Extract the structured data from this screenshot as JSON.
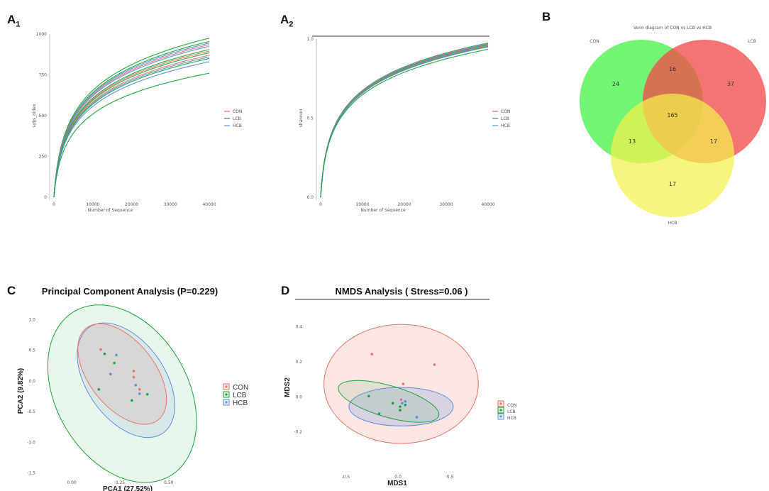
{
  "panels": {
    "a1": {
      "letter": "A",
      "sub": "1"
    },
    "a2": {
      "letter": "A",
      "sub": "2"
    },
    "b": {
      "letter": "B"
    },
    "c": {
      "letter": "C"
    },
    "d": {
      "letter": "D"
    }
  },
  "chart_data": [
    {
      "id": "A1",
      "type": "line",
      "title": "",
      "xlabel": "Number of Sequence",
      "ylabel": "sobs_index",
      "xlim": [
        0,
        40000
      ],
      "ylim": [
        0,
        1000
      ],
      "xticks": [
        "0",
        "10000",
        "20000",
        "30000",
        "40000"
      ],
      "yticks": [
        "0",
        "250",
        "500",
        "750",
        "1000"
      ],
      "legend": [
        "CON",
        "LCB",
        "HCB"
      ],
      "series": [
        {
          "group": "LCB",
          "final": 975
        },
        {
          "group": "LCB",
          "final": 955
        },
        {
          "group": "HCB",
          "final": 945
        },
        {
          "group": "CON",
          "final": 935
        },
        {
          "group": "HCB",
          "final": 925
        },
        {
          "group": "LCB",
          "final": 905
        },
        {
          "group": "CON",
          "final": 895
        },
        {
          "group": "LCB",
          "final": 885
        },
        {
          "group": "CON",
          "final": 870
        },
        {
          "group": "HCB",
          "final": 860
        },
        {
          "group": "LCB",
          "final": 850
        },
        {
          "group": "HCB",
          "final": 830
        },
        {
          "group": "LCB",
          "final": 760
        }
      ]
    },
    {
      "id": "A2",
      "type": "line",
      "title": "",
      "xlabel": "Number of Sequence",
      "ylabel": "shannon",
      "xlim": [
        0,
        40000
      ],
      "ylim": [
        0,
        1
      ],
      "xticks": [
        "0",
        "10000",
        "20000",
        "30000",
        "40000"
      ],
      "yticks": [
        "0.0",
        "0.5",
        "1.0"
      ],
      "legend": [
        "CON",
        "LCB",
        "HCB"
      ],
      "series": [
        {
          "group": "LCB",
          "final": 0.975
        },
        {
          "group": "HCB",
          "final": 0.972
        },
        {
          "group": "CON",
          "final": 0.968
        },
        {
          "group": "LCB",
          "final": 0.964
        },
        {
          "group": "HCB",
          "final": 0.96
        },
        {
          "group": "CON",
          "final": 0.957
        },
        {
          "group": "LCB",
          "final": 0.953
        },
        {
          "group": "HCB",
          "final": 0.95
        },
        {
          "group": "LCB",
          "final": 0.935
        }
      ]
    },
    {
      "id": "B",
      "type": "venn",
      "title": "Venn diagram of CON vs LCB vs HCB",
      "sets": [
        "CON",
        "LCB",
        "HCB"
      ],
      "regions": {
        "CON": "24",
        "LCB": "37",
        "HCB": "17",
        "CON_LCB": "16",
        "CON_HCB": "13",
        "LCB_HCB": "17",
        "ALL": "165"
      }
    },
    {
      "id": "C",
      "type": "scatter",
      "title": "Principal Component Analysis (P=0.229)",
      "xlabel": "PCA1 (27.52%)",
      "ylabel": "PCA2 (9.82%)",
      "xlim": [
        -0.15,
        0.72
      ],
      "ylim": [
        -1.55,
        1.2
      ],
      "xticks": [
        "0.00",
        "0.25",
        "0.50"
      ],
      "yticks": [
        "1.0",
        "0.5",
        "0.0",
        "-0.5",
        "-1.0",
        "-1.5"
      ],
      "legend": [
        "CON",
        "LCB",
        "HCB"
      ],
      "points": {
        "CON": [
          [
            0.15,
            0.5
          ],
          [
            0.32,
            0.15
          ],
          [
            0.35,
            -0.15
          ],
          [
            0.32,
            0.05
          ]
        ],
        "LCB": [
          [
            0.17,
            0.43
          ],
          [
            0.22,
            0.28
          ],
          [
            0.14,
            -0.15
          ],
          [
            0.31,
            -0.33
          ],
          [
            0.39,
            -0.23
          ]
        ],
        "HCB": [
          [
            0.23,
            0.41
          ],
          [
            0.2,
            0.1
          ],
          [
            0.33,
            -0.08
          ],
          [
            0.35,
            -0.22
          ]
        ]
      },
      "ellipses": {
        "CON": {
          "cx": 0.26,
          "cy": 0.1,
          "rx": 0.17,
          "ry": 0.95,
          "angle": 38
        },
        "HCB": {
          "cx": 0.28,
          "cy": 0.0,
          "rx": 0.2,
          "ry": 1.05,
          "angle": 35
        },
        "LCB": {
          "cx": 0.26,
          "cy": -0.22,
          "rx": 0.34,
          "ry": 1.55,
          "angle": 30
        }
      }
    },
    {
      "id": "D",
      "type": "scatter",
      "title": "NMDS Analysis ( Stress=0.06 )",
      "xlabel": "MDS1",
      "ylabel": "MDS2",
      "xlim": [
        -0.85,
        0.85
      ],
      "ylim": [
        -0.42,
        0.52
      ],
      "xticks": [
        "-0.5",
        "0.0",
        "0.5"
      ],
      "yticks": [
        "0.4",
        "0.2",
        "0.0",
        "-0.2"
      ],
      "legend": [
        "CON",
        "LCB",
        "HCB"
      ],
      "points": {
        "CON": [
          [
            -0.25,
            0.24
          ],
          [
            0.35,
            0.18
          ],
          [
            0.05,
            0.07
          ],
          [
            0.03,
            -0.02
          ]
        ],
        "LCB": [
          [
            -0.28,
            0.0
          ],
          [
            -0.05,
            -0.04
          ],
          [
            0.02,
            -0.06
          ],
          [
            0.07,
            -0.05
          ],
          [
            0.02,
            -0.08
          ],
          [
            -0.18,
            -0.1
          ]
        ],
        "HCB": [
          [
            0.07,
            -0.03
          ],
          [
            0.18,
            -0.12
          ],
          [
            0.04,
            -0.04
          ]
        ]
      },
      "ellipses": {
        "CON": {
          "cx": 0.03,
          "cy": 0.07,
          "rx": 0.74,
          "ry": 0.34,
          "angle": 0
        },
        "LCB": {
          "cx": -0.09,
          "cy": -0.03,
          "rx": 0.5,
          "ry": 0.09,
          "angle": -16
        },
        "HCB": {
          "cx": 0.03,
          "cy": -0.06,
          "rx": 0.5,
          "ry": 0.11,
          "angle": 0
        }
      }
    }
  ],
  "colors": {
    "CON": "#e8726a",
    "LCB": "#1aa53a",
    "HCB": "#5b8fd9",
    "vennCON": "#4cf24c",
    "vennLCB": "#f24c4c",
    "vennHCB": "#f2f24c"
  }
}
